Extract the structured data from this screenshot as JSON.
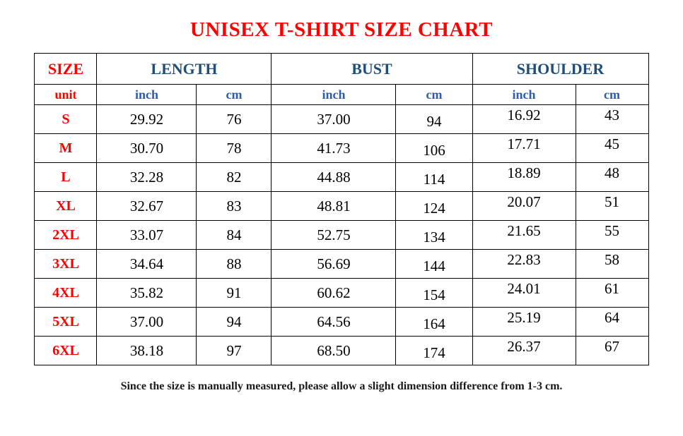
{
  "title": "UNISEX T-SHIRT SIZE CHART",
  "chart_data": {
    "type": "table",
    "title": "UNISEX T-SHIRT SIZE CHART",
    "column_groups": [
      "SIZE",
      "LENGTH",
      "BUST",
      "SHOULDER"
    ],
    "unit_row": [
      "unit",
      "inch",
      "cm",
      "inch",
      "cm",
      "inch",
      "cm"
    ],
    "row_fields": [
      "size",
      "length_inch",
      "length_cm",
      "bust_inch",
      "bust_cm",
      "shoulder_inch",
      "shoulder_cm"
    ],
    "rows": [
      [
        "S",
        "29.92",
        "76",
        "37.00",
        "94",
        "16.92",
        "43"
      ],
      [
        "M",
        "30.70",
        "78",
        "41.73",
        "106",
        "17.71",
        "45"
      ],
      [
        "L",
        "32.28",
        "82",
        "44.88",
        "114",
        "18.89",
        "48"
      ],
      [
        "XL",
        "32.67",
        "83",
        "48.81",
        "124",
        "20.07",
        "51"
      ],
      [
        "2XL",
        "33.07",
        "84",
        "52.75",
        "134",
        "21.65",
        "55"
      ],
      [
        "3XL",
        "34.64",
        "88",
        "56.69",
        "144",
        "22.83",
        "58"
      ],
      [
        "4XL",
        "35.82",
        "91",
        "60.62",
        "154",
        "24.01",
        "61"
      ],
      [
        "5XL",
        "37.00",
        "94",
        "64.56",
        "164",
        "25.19",
        "64"
      ],
      [
        "6XL",
        "38.18",
        "97",
        "68.50",
        "174",
        "26.37",
        "67"
      ]
    ]
  },
  "footer_note": "Since the size is manually measured, please allow a slight dimension difference from 1-3 cm.",
  "colors": {
    "title_red": "#ff0000",
    "size_red": "#ff0000",
    "group_header_blue": "#1f4e79",
    "unit_blue": "#2e5ca6",
    "value_text": "#000000",
    "border": "#000000",
    "background": "#ffffff"
  }
}
